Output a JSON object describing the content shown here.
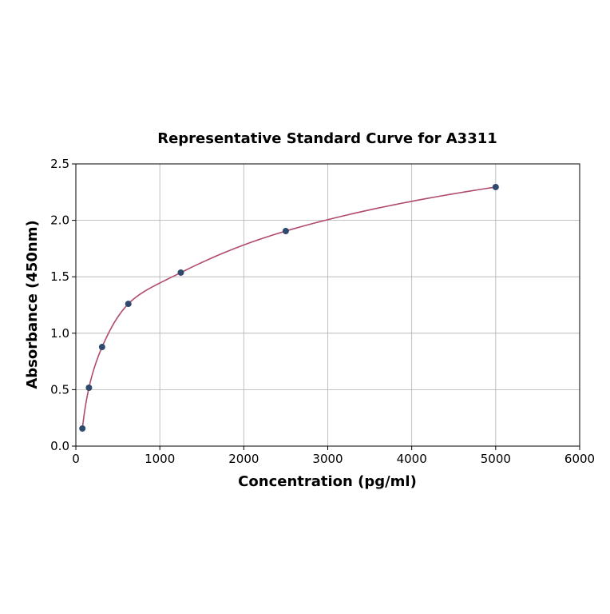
{
  "chart_data": {
    "type": "scatter",
    "title": "Representative Standard Curve for A3311",
    "xlabel": "Concentration (pg/ml)",
    "ylabel": "Absorbance (450nm)",
    "xlim": [
      0,
      6000
    ],
    "ylim": [
      0,
      2.5
    ],
    "xticks": [
      "0",
      "1000",
      "2000",
      "3000",
      "4000",
      "5000",
      "6000"
    ],
    "yticks": [
      "0.0",
      "0.5",
      "1.0",
      "1.5",
      "2.0",
      "2.5"
    ],
    "grid": true,
    "series": [
      {
        "x": [
          78,
          156,
          312.5,
          625,
          1250,
          2500,
          5000
        ],
        "y": [
          0.156,
          0.517,
          0.878,
          1.26,
          1.537,
          1.905,
          2.295
        ],
        "marker": "circle",
        "fit_line": true
      }
    ],
    "colors": {
      "points": "#2f4a6d",
      "curve": "#b04a6e",
      "grid": "#b0b0b0"
    }
  }
}
